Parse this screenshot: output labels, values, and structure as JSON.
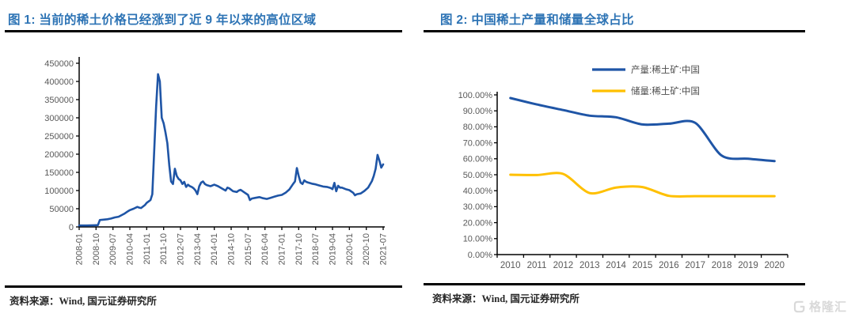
{
  "figure1": {
    "title": "图 1: 当前的稀土价格已经涨到了近 9 年以来的高位区域",
    "source": "资料来源：Wind, 国元证券研究所"
  },
  "figure2": {
    "title": "图 2: 中国稀土产量和储量全球占比",
    "source": "资料来源：Wind, 国元证券研究所"
  },
  "watermark": {
    "icon": "gelonghui-g-icon",
    "text": "格隆汇"
  },
  "colors": {
    "title_blue": "#2E74B5",
    "line_blue": "#1F55A6",
    "line_yellow": "#FFC000",
    "axis_label_gray": "#595959",
    "legend_gray": "#4D4D4D",
    "axis_black": "#000000",
    "watermark_gray": "#D9D9D9"
  },
  "chart_data": [
    {
      "type": "line",
      "title": "图 1: 当前的稀土价格已经涨到了近 9 年以来的高位区域",
      "xlabel": "",
      "ylabel": "",
      "ylim": [
        0,
        450000
      ],
      "grid": false,
      "legend": false,
      "y_ticks": [
        0,
        50000,
        100000,
        150000,
        200000,
        250000,
        300000,
        350000,
        400000,
        450000
      ],
      "y_tick_labels": [
        "0",
        "50000",
        "100000",
        "150000",
        "200000",
        "250000",
        "300000",
        "350000",
        "400000",
        "450000"
      ],
      "x_tick_positions": [
        0,
        9,
        18,
        27,
        36,
        45,
        54,
        63,
        72,
        81,
        90,
        99,
        108,
        117,
        126,
        135,
        144,
        153,
        162
      ],
      "x_tick_labels": [
        "2008-01",
        "2008-10",
        "2009-07",
        "2010-04",
        "2011-01",
        "2011-10",
        "2012-07",
        "2013-04",
        "2014-01",
        "2014-10",
        "2015-07",
        "2016-04",
        "2017-01",
        "2017-10",
        "2018-07",
        "2019-04",
        "2020-01",
        "2020-10",
        "2021-07"
      ],
      "x_unit": "months since 2008-01",
      "series": [
        {
          "name": "稀土价格",
          "color": "#1F55A6",
          "points": [
            [
              0,
              4000
            ],
            [
              4,
              4000
            ],
            [
              8,
              4500
            ],
            [
              10,
              5000
            ],
            [
              11,
              19000
            ],
            [
              13,
              20000
            ],
            [
              15,
              21000
            ],
            [
              17,
              23000
            ],
            [
              19,
              26000
            ],
            [
              21,
              28000
            ],
            [
              24,
              36000
            ],
            [
              26,
              43000
            ],
            [
              27,
              46000
            ],
            [
              29,
              50000
            ],
            [
              31,
              55000
            ],
            [
              32,
              53000
            ],
            [
              33,
              52000
            ],
            [
              35,
              60000
            ],
            [
              36,
              66000
            ],
            [
              37,
              70000
            ],
            [
              38,
              74000
            ],
            [
              39,
              90000
            ],
            [
              40,
              210000
            ],
            [
              41,
              330000
            ],
            [
              42,
              420000
            ],
            [
              43,
              400000
            ],
            [
              44,
              300000
            ],
            [
              45,
              285000
            ],
            [
              46,
              260000
            ],
            [
              47,
              230000
            ],
            [
              48,
              170000
            ],
            [
              49,
              125000
            ],
            [
              50,
              118000
            ],
            [
              51,
              160000
            ],
            [
              52,
              140000
            ],
            [
              53,
              132000
            ],
            [
              54,
              128000
            ],
            [
              55,
              118000
            ],
            [
              56,
              124000
            ],
            [
              57,
              110000
            ],
            [
              58,
              116000
            ],
            [
              59,
              112000
            ],
            [
              60,
              110000
            ],
            [
              61,
              106000
            ],
            [
              62,
              100000
            ],
            [
              63,
              90000
            ],
            [
              64,
              112000
            ],
            [
              65,
              122000
            ],
            [
              66,
              125000
            ],
            [
              67,
              118000
            ],
            [
              68,
              115000
            ],
            [
              70,
              112000
            ],
            [
              72,
              116000
            ],
            [
              74,
              112000
            ],
            [
              76,
              106000
            ],
            [
              78,
              100000
            ],
            [
              79,
              108000
            ],
            [
              80,
              106000
            ],
            [
              82,
              98000
            ],
            [
              84,
              96000
            ],
            [
              85,
              100000
            ],
            [
              86,
              102000
            ],
            [
              88,
              95000
            ],
            [
              90,
              88000
            ],
            [
              91,
              74000
            ],
            [
              92,
              78000
            ],
            [
              94,
              80000
            ],
            [
              96,
              82000
            ],
            [
              98,
              79000
            ],
            [
              100,
              77000
            ],
            [
              102,
              80000
            ],
            [
              104,
              83000
            ],
            [
              106,
              86000
            ],
            [
              108,
              88000
            ],
            [
              110,
              94000
            ],
            [
              112,
              103000
            ],
            [
              114,
              118000
            ],
            [
              115,
              125000
            ],
            [
              116,
              162000
            ],
            [
              117,
              140000
            ],
            [
              118,
              122000
            ],
            [
              119,
              118000
            ],
            [
              120,
              128000
            ],
            [
              121,
              124000
            ],
            [
              122,
              122000
            ],
            [
              124,
              119000
            ],
            [
              126,
              117000
            ],
            [
              128,
              114000
            ],
            [
              130,
              111000
            ],
            [
              132,
              110000
            ],
            [
              134,
              107000
            ],
            [
              135,
              104000
            ],
            [
              136,
              121000
            ],
            [
              137,
              98000
            ],
            [
              138,
              113000
            ],
            [
              139,
              108000
            ],
            [
              140,
              108000
            ],
            [
              142,
              104000
            ],
            [
              144,
              101000
            ],
            [
              146,
              94000
            ],
            [
              147,
              87000
            ],
            [
              148,
              90000
            ],
            [
              150,
              92000
            ],
            [
              152,
              99000
            ],
            [
              154,
              108000
            ],
            [
              156,
              126000
            ],
            [
              157,
              140000
            ],
            [
              158,
              160000
            ],
            [
              159,
              198000
            ],
            [
              160,
              182000
            ],
            [
              161,
              163000
            ],
            [
              162,
              172000
            ]
          ]
        }
      ]
    },
    {
      "type": "line",
      "title": "图 2: 中国稀土产量和储量全球占比",
      "xlabel": "",
      "ylabel": "",
      "ylim": [
        0,
        100
      ],
      "grid": false,
      "legend_position": "top-right",
      "y_ticks": [
        0,
        10,
        20,
        30,
        40,
        50,
        60,
        70,
        80,
        90,
        100
      ],
      "y_tick_labels": [
        "0.00%",
        "10.00%",
        "20.00%",
        "30.00%",
        "40.00%",
        "50.00%",
        "60.00%",
        "70.00%",
        "80.00%",
        "90.00%",
        "100.00%"
      ],
      "categories": [
        "2010",
        "2011",
        "2012",
        "2013",
        "2014",
        "2015",
        "2016",
        "2017",
        "2018",
        "2019",
        "2020"
      ],
      "series": [
        {
          "name": "产量:稀土矿:中国",
          "color": "#1F55A6",
          "values": [
            98.0,
            94.0,
            90.5,
            87.0,
            86.0,
            81.5,
            82.0,
            82.5,
            62.0,
            60.0,
            58.5
          ]
        },
        {
          "name": "储量:稀土矿:中国",
          "color": "#FFC000",
          "values": [
            50.0,
            49.8,
            50.5,
            38.5,
            42.0,
            42.3,
            36.8,
            36.6,
            36.6,
            36.6,
            36.6
          ]
        }
      ]
    }
  ]
}
